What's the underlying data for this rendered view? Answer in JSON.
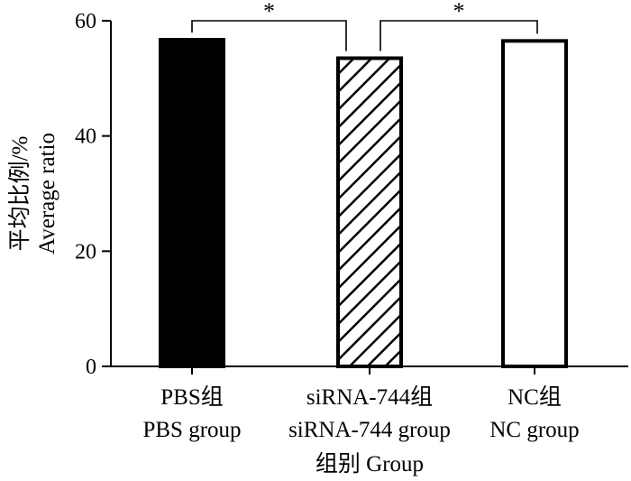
{
  "chart_data": {
    "type": "bar",
    "categories": [
      {
        "line1": "PBS组",
        "line2": "PBS group"
      },
      {
        "line1": "siRNA-744组",
        "line2": "siRNA-744 group"
      },
      {
        "line1": "NC组",
        "line2": "NC group"
      }
    ],
    "values": [
      56.7,
      53.5,
      56.5
    ],
    "bar_styles": [
      "solid-black",
      "diagonal-hatch",
      "white"
    ],
    "ylabel_line1": "平均比例/%",
    "ylabel_line2": "Average ratio",
    "xlabel": "组别 Group",
    "ylim": [
      0,
      60
    ],
    "yticks": [
      0,
      20,
      40,
      60
    ],
    "significance": [
      {
        "from": 0,
        "to": 1,
        "label": "*"
      },
      {
        "from": 1,
        "to": 2,
        "label": "*"
      }
    ],
    "grid": false,
    "legend": "none"
  }
}
